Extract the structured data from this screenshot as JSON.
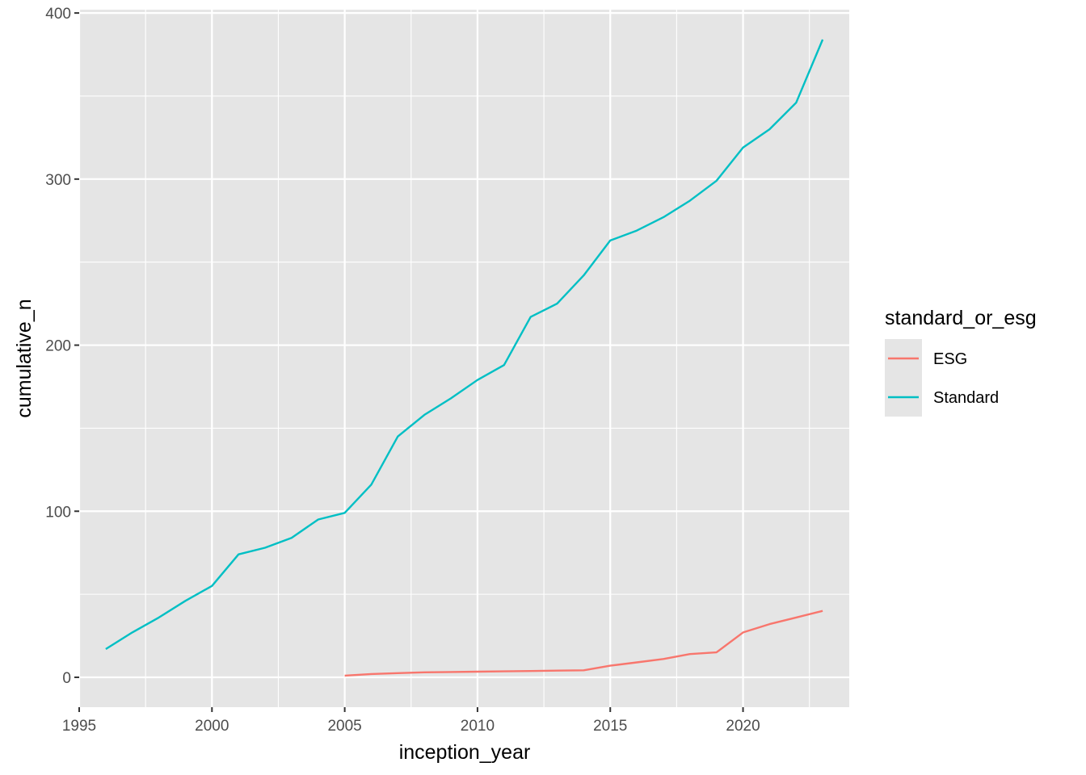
{
  "colors": {
    "panel_bg": "#e5e5e5",
    "grid": "#ffffff",
    "axis_text": "#4d4d4d",
    "ESG": "#f8766d",
    "Standard": "#00bfc4"
  },
  "chart_data": {
    "type": "line",
    "title": "",
    "xlabel": "inception_year",
    "ylabel": "cumulative_n",
    "xlim": [
      1995,
      2024
    ],
    "ylim": [
      -18,
      402
    ],
    "x_ticks": [
      1995,
      2000,
      2005,
      2010,
      2015,
      2020
    ],
    "y_ticks": [
      0,
      100,
      200,
      300,
      400
    ],
    "grid": true,
    "legend": {
      "title": "standard_or_esg",
      "position": "right"
    },
    "series": [
      {
        "name": "ESG",
        "color": "#f8766d",
        "x": [
          2005,
          2006,
          2007,
          2008,
          2009,
          2010,
          2011,
          2012,
          2013,
          2014,
          2015,
          2016,
          2017,
          2018,
          2019,
          2020,
          2021,
          2022,
          2023
        ],
        "y": [
          1,
          2,
          2.5,
          3,
          3.2,
          3.4,
          3.6,
          3.8,
          4,
          4.2,
          7,
          9,
          11,
          14,
          15,
          27,
          32,
          36,
          40
        ]
      },
      {
        "name": "Standard",
        "color": "#00bfc4",
        "x": [
          1996,
          1997,
          1998,
          1999,
          2000,
          2001,
          2002,
          2003,
          2004,
          2005,
          2006,
          2007,
          2008,
          2009,
          2010,
          2011,
          2012,
          2013,
          2014,
          2015,
          2016,
          2017,
          2018,
          2019,
          2020,
          2021,
          2022,
          2023
        ],
        "y": [
          17,
          27,
          36,
          46,
          55,
          74,
          78,
          84,
          95,
          99,
          116,
          145,
          158,
          168,
          179,
          188,
          217,
          225,
          242,
          263,
          269,
          277,
          287,
          299,
          319,
          330,
          346,
          384
        ]
      }
    ]
  }
}
